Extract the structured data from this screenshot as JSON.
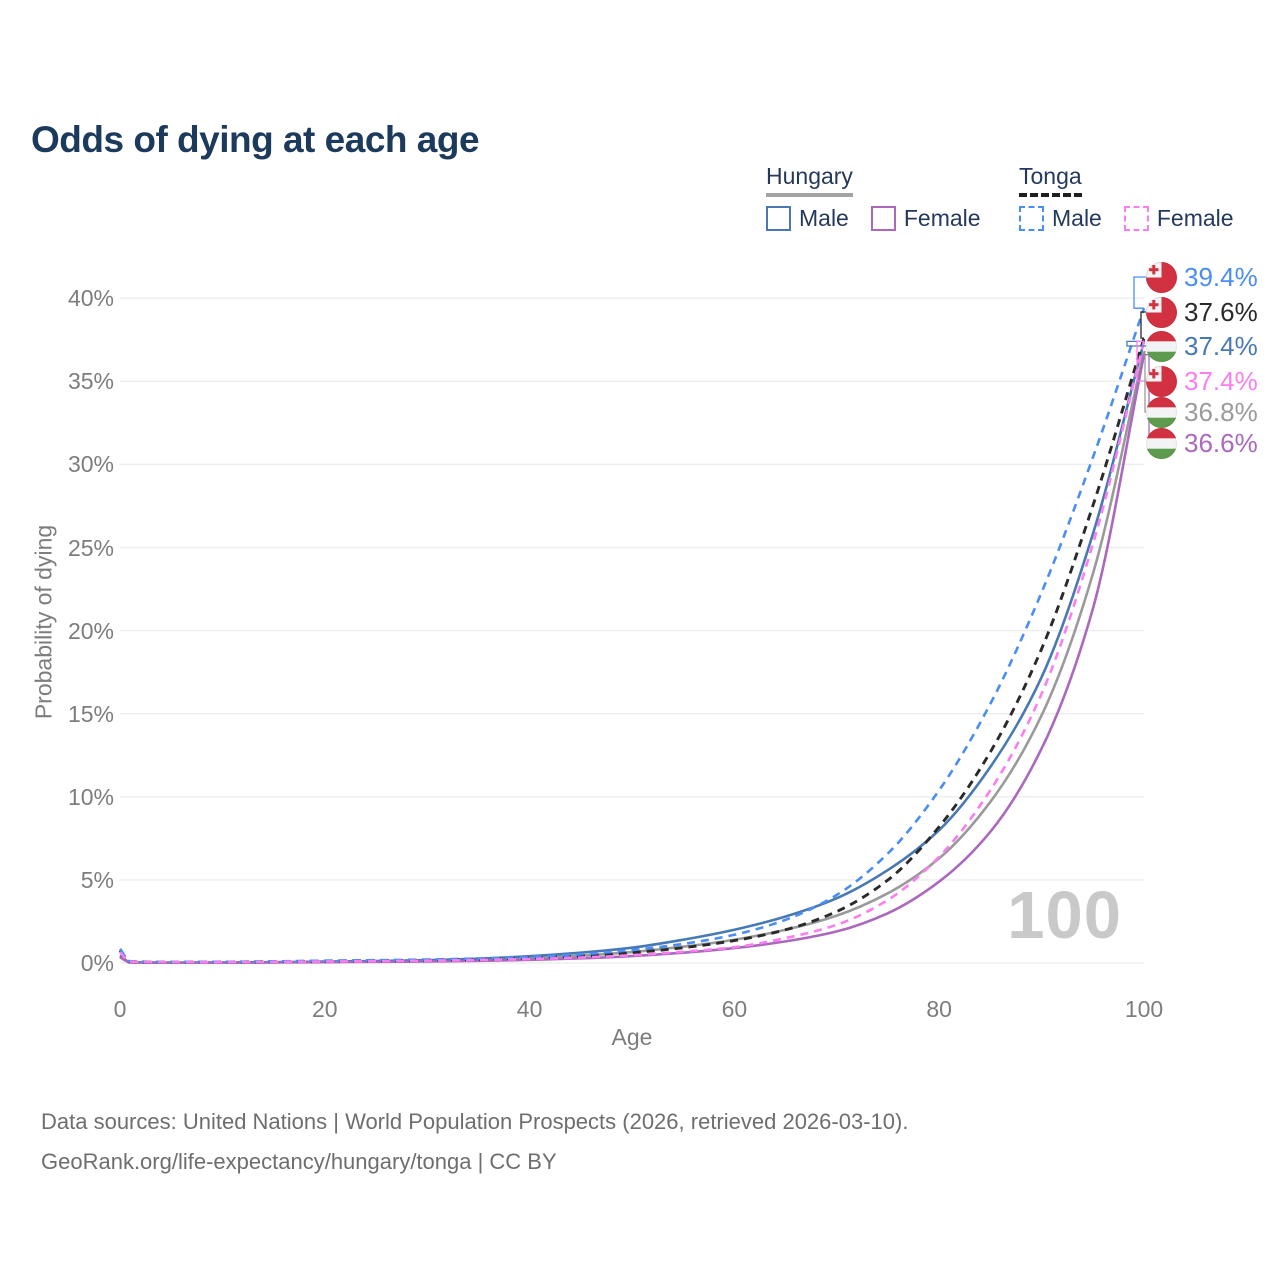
{
  "title": "Odds of dying at each age",
  "legend": {
    "groups": [
      {
        "country": "Hungary",
        "line_style": "solid",
        "underline_color": "#a3a3a3",
        "entries": [
          {
            "label": "Male",
            "color": "#4879b4",
            "dashed": false
          },
          {
            "label": "Female",
            "color": "#ab68bd",
            "dashed": false
          }
        ]
      },
      {
        "country": "Tonga",
        "line_style": "dashed",
        "underline_color": "#1f1f1f",
        "entries": [
          {
            "label": "Male",
            "color": "#4a8df5",
            "dashed": true
          },
          {
            "label": "Female",
            "color": "#fb7df2",
            "dashed": true
          }
        ]
      }
    ]
  },
  "chart_data": {
    "type": "line",
    "title": "Odds of dying at each age",
    "xlabel": "Age",
    "ylabel": "Probability of dying",
    "xlim": [
      0,
      100
    ],
    "ylim": [
      0,
      42
    ],
    "x_ticks": [
      0,
      20,
      40,
      60,
      80,
      100
    ],
    "y_ticks": [
      0,
      5,
      10,
      15,
      20,
      25,
      30,
      35,
      40
    ],
    "y_tick_suffix": "%",
    "grid": "horizontal-only",
    "legend_position": "top-right",
    "age_indicator": "100",
    "ages": [
      0,
      1,
      5,
      10,
      15,
      20,
      25,
      30,
      35,
      40,
      45,
      50,
      55,
      60,
      65,
      70,
      75,
      80,
      85,
      90,
      95,
      100
    ],
    "unit": "percent",
    "series": [
      {
        "name": "Hungary",
        "country": "Hungary",
        "sex": "both",
        "color": "#9a9a9a",
        "dashed": false,
        "values": [
          0.4,
          0.03,
          0.02,
          0.03,
          0.04,
          0.07,
          0.09,
          0.13,
          0.19,
          0.29,
          0.44,
          0.66,
          0.98,
          1.4,
          2.0,
          2.85,
          4.2,
          6.3,
          9.7,
          14.9,
          23.4,
          36.8
        ]
      },
      {
        "name": "Hungary Male",
        "country": "Hungary",
        "sex": "male",
        "color": "#4879b4",
        "dashed": false,
        "values": [
          0.45,
          0.04,
          0.02,
          0.03,
          0.05,
          0.09,
          0.12,
          0.17,
          0.26,
          0.41,
          0.62,
          0.92,
          1.4,
          2.0,
          2.8,
          3.9,
          5.6,
          8.0,
          11.8,
          17.2,
          25.8,
          37.4
        ]
      },
      {
        "name": "Hungary Female",
        "country": "Hungary",
        "sex": "female",
        "color": "#ab68bd",
        "dashed": false,
        "values": [
          0.35,
          0.03,
          0.02,
          0.02,
          0.03,
          0.05,
          0.07,
          0.09,
          0.13,
          0.19,
          0.28,
          0.42,
          0.62,
          0.9,
          1.3,
          1.9,
          3.0,
          4.9,
          7.9,
          12.9,
          21.3,
          36.6
        ]
      },
      {
        "name": "Tonga",
        "country": "Tonga",
        "sex": "both",
        "color": "#2a2a2a",
        "dashed": true,
        "values": [
          0.75,
          0.09,
          0.05,
          0.06,
          0.08,
          0.11,
          0.14,
          0.17,
          0.22,
          0.3,
          0.42,
          0.62,
          0.92,
          1.35,
          2.0,
          3.1,
          5.0,
          8.2,
          12.7,
          18.9,
          27.5,
          37.6
        ]
      },
      {
        "name": "Tonga Male",
        "country": "Tonga",
        "sex": "male",
        "color": "#4a8df5",
        "dashed": true,
        "values": [
          0.85,
          0.1,
          0.06,
          0.07,
          0.1,
          0.14,
          0.17,
          0.21,
          0.27,
          0.36,
          0.52,
          0.78,
          1.15,
          1.7,
          2.6,
          4.1,
          6.6,
          10.4,
          15.6,
          22.3,
          30.4,
          39.4
        ]
      },
      {
        "name": "Tonga Female",
        "country": "Tonga",
        "sex": "female",
        "color": "#fb7df2",
        "dashed": true,
        "values": [
          0.65,
          0.08,
          0.05,
          0.05,
          0.07,
          0.09,
          0.11,
          0.14,
          0.18,
          0.24,
          0.33,
          0.47,
          0.68,
          0.95,
          1.5,
          2.3,
          3.8,
          6.4,
          10.4,
          16.2,
          25.2,
          37.4
        ]
      }
    ],
    "value_labels": [
      {
        "text": "39.4%",
        "series": "Tonga Male",
        "flag": "tonga",
        "color": "#4a8df5"
      },
      {
        "text": "37.6%",
        "series": "Tonga",
        "flag": "tonga",
        "color": "#2a2a2a"
      },
      {
        "text": "37.4%",
        "series": "Hungary Male",
        "flag": "hungary",
        "color": "#4879b4"
      },
      {
        "text": "37.4%",
        "series": "Tonga Female",
        "flag": "tonga",
        "color": "#fb7df2"
      },
      {
        "text": "36.8%",
        "series": "Hungary",
        "flag": "hungary",
        "color": "#9a9a9a"
      },
      {
        "text": "36.6%",
        "series": "Hungary Female",
        "flag": "hungary",
        "color": "#ab68bd"
      }
    ],
    "flag_colors": {
      "red": "#d13140",
      "white": "#f2f3f5",
      "green": "#5e9b4d"
    }
  },
  "footer": {
    "line1": "Data sources: United Nations | World Population Prospects (2026, retrieved 2026-03-10).",
    "line2": "GeoRank.org/life-expectancy/hungary/tonga | CC BY"
  }
}
